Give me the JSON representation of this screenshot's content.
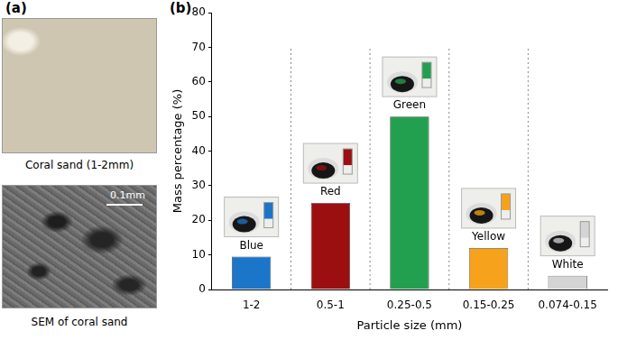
{
  "panel_a": {
    "label": "(a)",
    "images": [
      {
        "caption": "Coral sand (1-2mm)"
      },
      {
        "caption": "SEM of coral sand",
        "scale_bar": "0.1mm"
      }
    ]
  },
  "chart_data": {
    "type": "bar",
    "panel_label": "(b)",
    "x_label": "Particle size (mm)",
    "y_label": "Mass percentage (%)",
    "categories": [
      "1-2",
      "0.5-1",
      "0.25-0.5",
      "0.15-0.25",
      "0.074-0.15"
    ],
    "values": [
      9.5,
      25,
      50,
      12,
      4
    ],
    "colors": [
      "#1b75c9",
      "#9c0f10",
      "#23a04f",
      "#f7a21c",
      "#d4d4d4"
    ],
    "annotations": [
      "Blue",
      "Red",
      "Green",
      "Yellow",
      "White"
    ],
    "ylim": [
      0,
      80
    ],
    "yticks": [
      0,
      10,
      20,
      30,
      40,
      50,
      60,
      70,
      80
    ],
    "grid": false
  }
}
